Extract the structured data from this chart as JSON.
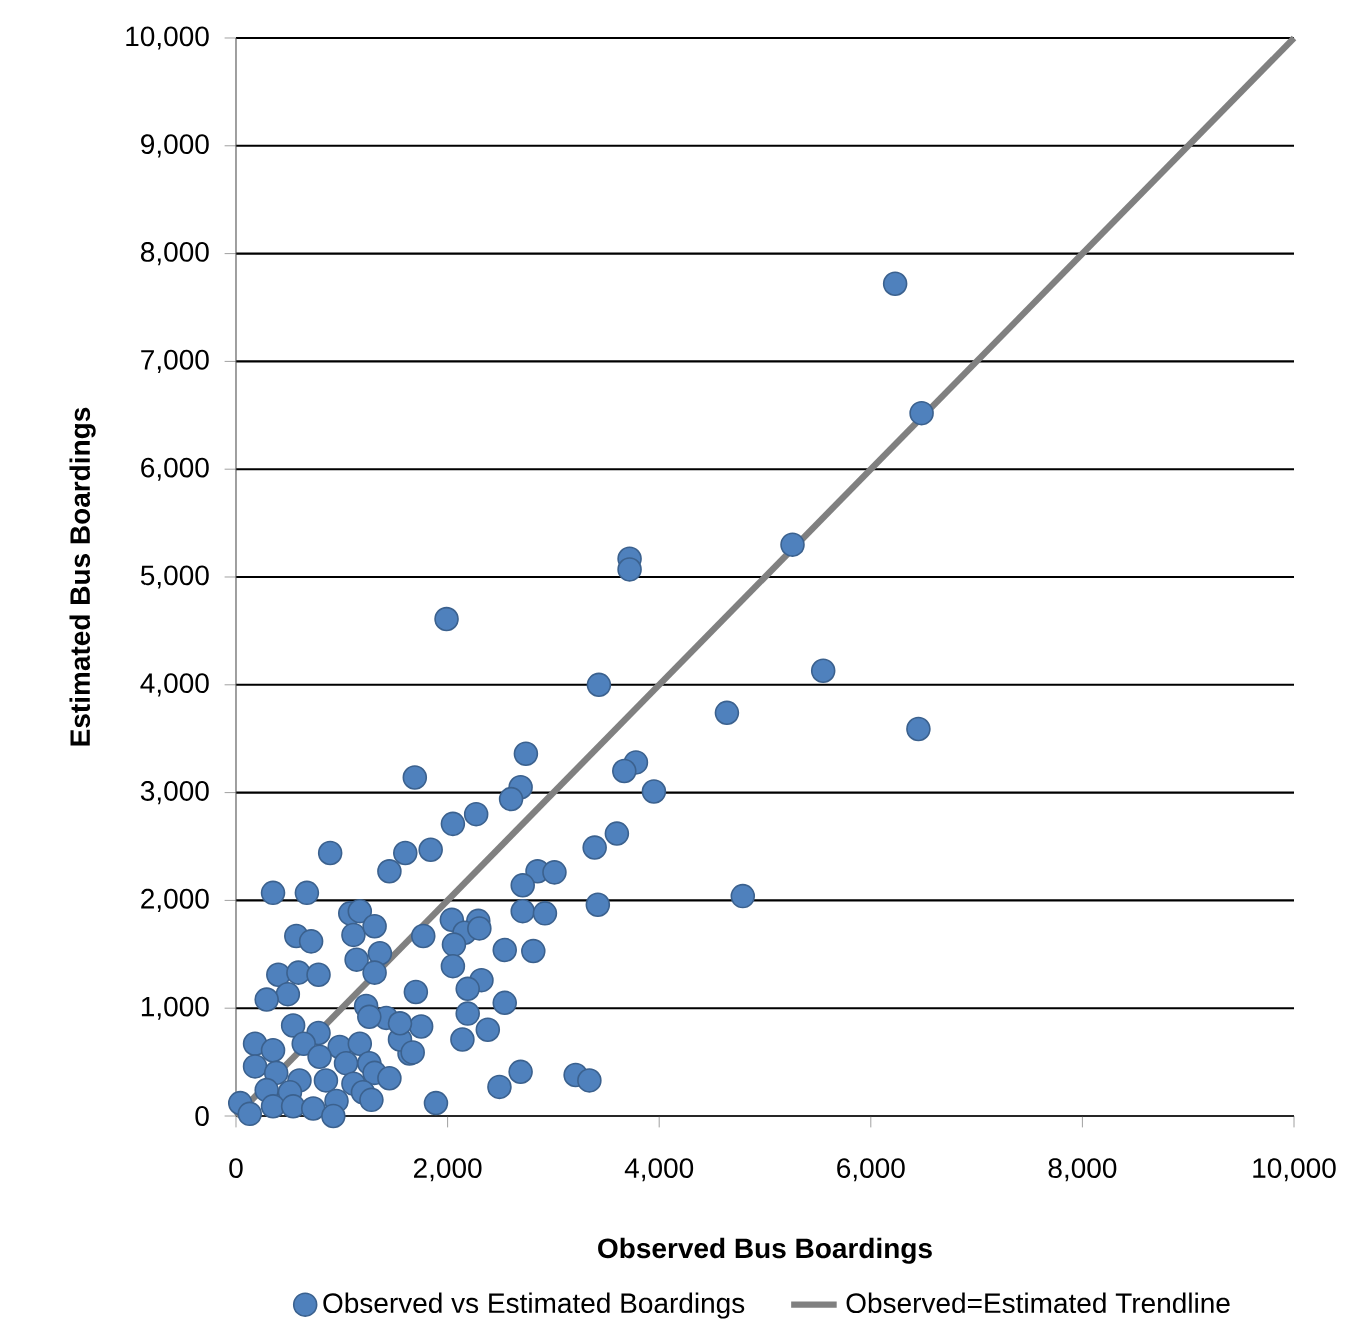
{
  "chart_data": {
    "type": "scatter",
    "xlabel": "Observed Bus Boardings",
    "ylabel": "Estimated Bus Boardings",
    "xlim": [
      0,
      10000
    ],
    "ylim": [
      0,
      10000
    ],
    "xticks": [
      0,
      {
        "value": 2000,
        "label": "2,000"
      },
      {
        "value": 4000,
        "label": "4,000"
      },
      {
        "value": 6000,
        "label": "6,000"
      },
      {
        "value": 8000,
        "label": "8,000"
      },
      {
        "value": 10000,
        "label": "10,000"
      }
    ],
    "yticks": [
      0,
      {
        "value": 1000,
        "label": "1,000"
      },
      {
        "value": 2000,
        "label": "2,000"
      },
      {
        "value": 3000,
        "label": "3,000"
      },
      {
        "value": 4000,
        "label": "4,000"
      },
      {
        "value": 5000,
        "label": "5,000"
      },
      {
        "value": 6000,
        "label": "6,000"
      },
      {
        "value": 7000,
        "label": "7,000"
      },
      {
        "value": 8000,
        "label": "8,000"
      },
      {
        "value": 9000,
        "label": "9,000"
      },
      {
        "value": 10000,
        "label": "10,000"
      }
    ],
    "grid": "y",
    "legend": "bottom",
    "series": [
      {
        "name": "Observed vs Estimated Boardings",
        "marker": "circle",
        "color": "#4f81bd",
        "x": [
          6230,
          6480,
          5260,
          3720,
          3720,
          5550,
          4640,
          6450,
          3780,
          3670,
          3950,
          3430,
          1990,
          2740,
          1690,
          2690,
          2600,
          2270,
          2050,
          1600,
          1840,
          3390,
          3600,
          2850,
          3010,
          2710,
          3420,
          4790,
          2710,
          2920,
          2040,
          2290,
          1770,
          2160,
          2300,
          2060,
          2540,
          2810,
          2050,
          2320,
          2190,
          1700,
          2540,
          2190,
          1750,
          2380,
          2140,
          2690,
          2490,
          3210,
          3340,
          1890,
          1640,
          1550,
          890,
          350,
          670,
          1450,
          1080,
          1170,
          1110,
          1310,
          570,
          710,
          1140,
          1360,
          400,
          590,
          780,
          490,
          290,
          1310,
          1230,
          1420,
          540,
          780,
          180,
          350,
          640,
          980,
          1170,
          1670,
          180,
          380,
          790,
          1040,
          1260,
          1310,
          600,
          850,
          1110,
          1450,
          290,
          510,
          950,
          1200,
          1280,
          40,
          130,
          350,
          540,
          730,
          920,
          1550,
          1260
        ],
        "values": [
          7720,
          6520,
          5300,
          5170,
          5070,
          4130,
          3740,
          3590,
          3280,
          3200,
          3010,
          4000,
          4610,
          3360,
          3140,
          3050,
          2940,
          2800,
          2710,
          2440,
          2470,
          2490,
          2620,
          2270,
          2260,
          2140,
          1960,
          2040,
          1900,
          1880,
          1820,
          1810,
          1670,
          1700,
          1740,
          1590,
          1540,
          1530,
          1390,
          1260,
          1180,
          1150,
          1050,
          950,
          830,
          800,
          710,
          410,
          270,
          380,
          330,
          120,
          580,
          710,
          2440,
          2070,
          2070,
          2270,
          1880,
          1900,
          1680,
          1760,
          1670,
          1620,
          1450,
          1510,
          1310,
          1330,
          1310,
          1130,
          1080,
          1330,
          1020,
          910,
          840,
          770,
          670,
          610,
          670,
          640,
          670,
          590,
          460,
          400,
          550,
          490,
          490,
          400,
          330,
          330,
          300,
          350,
          240,
          220,
          140,
          220,
          150,
          120,
          20,
          90,
          90,
          70,
          0,
          860,
          920
        ]
      },
      {
        "name": "Observed=Estimated Trendline",
        "type": "line",
        "color": "#808080",
        "marker": "none",
        "line_style": "solid",
        "x": [
          0,
          10000
        ],
        "values": [
          0,
          10000
        ]
      }
    ]
  }
}
